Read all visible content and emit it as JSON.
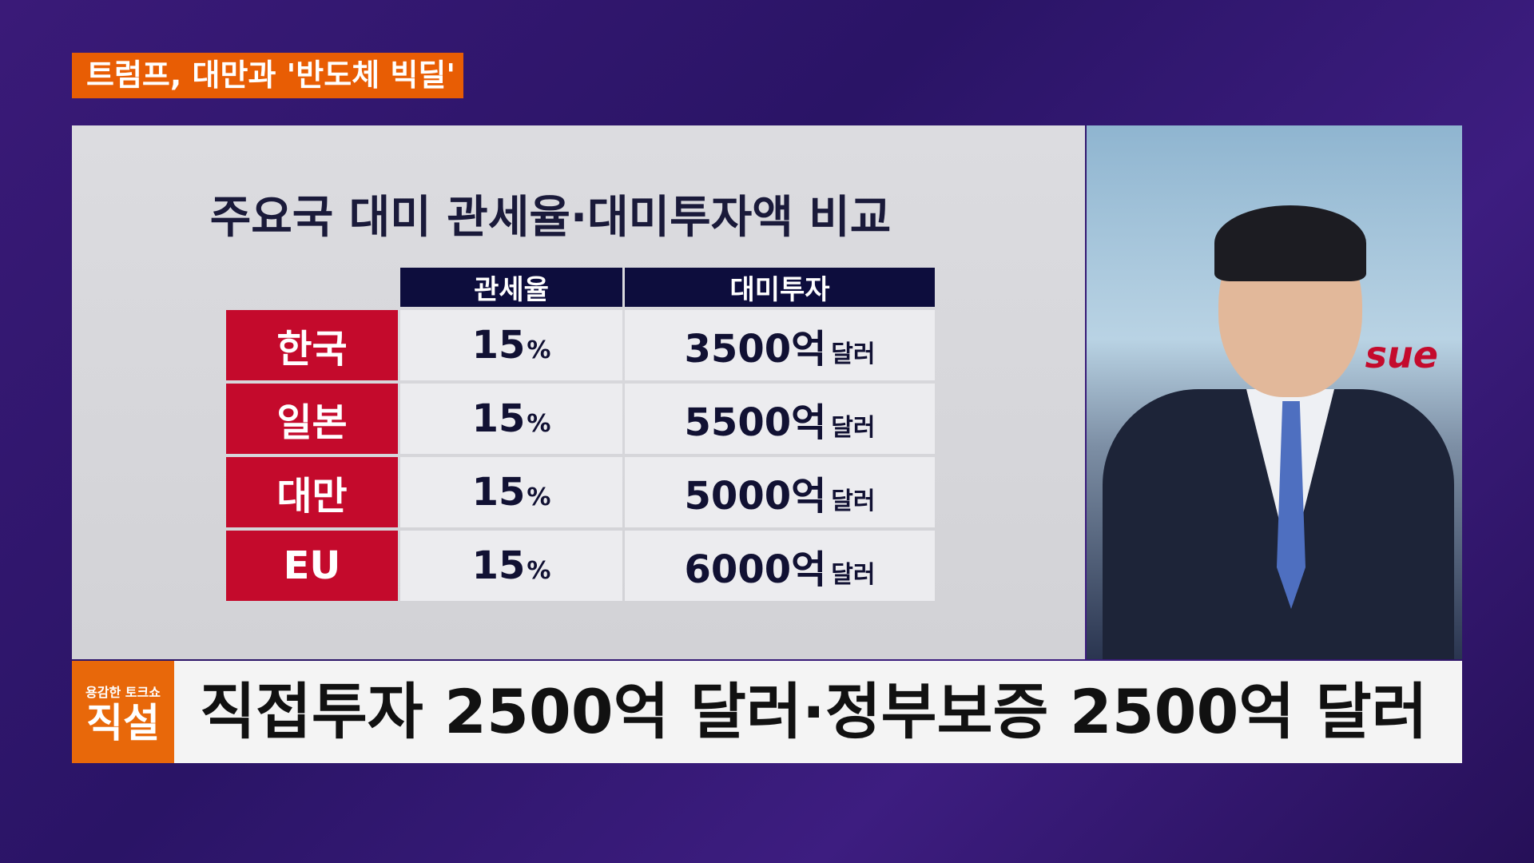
{
  "headline": "트럼프, 대만과 '반도체 빅딜'",
  "graphic": {
    "title": "주요국 대미 관세율·대미투자액 비교",
    "columns": [
      "관세율",
      "대미투자"
    ],
    "rows": [
      {
        "country": "한국",
        "rate": "15",
        "rate_unit": "%",
        "investment": "3500억",
        "investment_unit": "달러"
      },
      {
        "country": "일본",
        "rate": "15",
        "rate_unit": "%",
        "investment": "5500억",
        "investment_unit": "달러"
      },
      {
        "country": "대만",
        "rate": "15",
        "rate_unit": "%",
        "investment": "5000억",
        "investment_unit": "달러"
      },
      {
        "country": "EU",
        "rate": "15",
        "rate_unit": "%",
        "investment": "6000억",
        "investment_unit": "달러"
      }
    ]
  },
  "video": {
    "backdrop_text": "sue"
  },
  "lower_third": {
    "logo_sub": "용감한 토크쇼",
    "logo_main": "직설",
    "caption": "직접투자 2500억 달러·정부보증 2500억 달러"
  },
  "colors": {
    "headline_bg": "#e85d04",
    "row_label_bg": "#c40a2c",
    "header_bg": "#0d0d3d",
    "logo_bg": "#e8680a"
  }
}
